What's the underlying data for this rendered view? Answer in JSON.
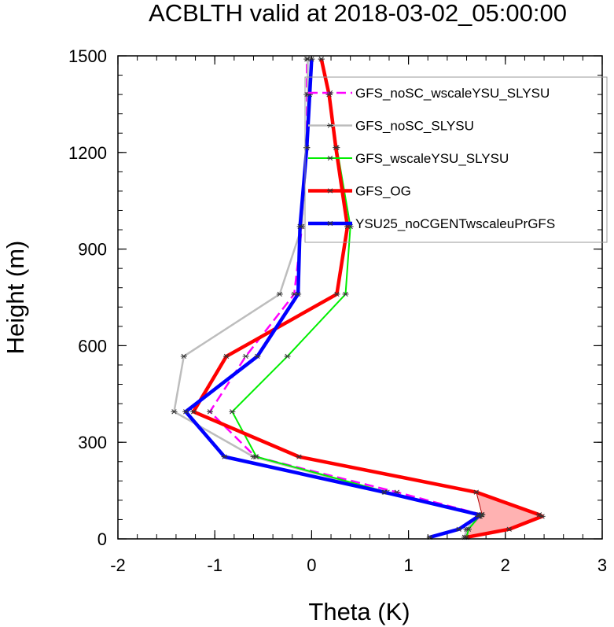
{
  "chart_data": {
    "type": "line",
    "title": "ACBLTH valid at 2018-03-02_05:00:00",
    "xlabel": "Theta (K)",
    "ylabel": "Height (m)",
    "xlim": [
      -2,
      3
    ],
    "ylim": [
      0,
      1500
    ],
    "xticks": [
      -2,
      -1,
      0,
      1,
      2,
      3
    ],
    "xtick_labels": [
      "-2",
      "-1",
      "0",
      "1",
      "2",
      "3"
    ],
    "yticks": [
      0,
      300,
      600,
      900,
      1200,
      1500
    ],
    "ytick_labels": [
      "0",
      "300",
      "600",
      "900",
      "1200",
      "1500"
    ],
    "grid": false,
    "legend_position": "top-right",
    "series": [
      {
        "name": "GFS_noSC_wscaleYSU_SLYSU",
        "color": "#ff00ff",
        "dash": true,
        "width": 2.5,
        "x": [
          1.58,
          1.6,
          1.74,
          1.76,
          0.88,
          -0.58,
          -1.05,
          -0.68,
          -0.18,
          -0.1,
          -0.05,
          -0.05,
          -0.05
        ],
        "y": [
          5,
          30,
          70,
          75,
          145,
          255,
          395,
          567,
          760,
          970,
          1215,
          1380,
          1490
        ]
      },
      {
        "name": "GFS_noSC_SLYSU",
        "color": "#bdbdbd",
        "dash": false,
        "width": 2.5,
        "x": [
          1.58,
          1.6,
          1.72,
          1.75,
          0.76,
          -0.6,
          -1.42,
          -1.32,
          -0.33,
          -0.1,
          -0.05,
          -0.04,
          -0.04
        ],
        "y": [
          5,
          30,
          70,
          75,
          145,
          255,
          395,
          567,
          760,
          970,
          1215,
          1380,
          1490
        ]
      },
      {
        "name": "GFS_wscaleYSU_SLYSU",
        "color": "#00ee00",
        "dash": false,
        "width": 2,
        "x": [
          1.6,
          1.62,
          1.73,
          1.76,
          0.78,
          -0.57,
          -0.82,
          -0.25,
          0.35,
          0.4,
          0.26,
          0.18,
          0.1
        ],
        "y": [
          5,
          30,
          70,
          75,
          145,
          255,
          395,
          567,
          760,
          970,
          1215,
          1380,
          1490
        ]
      },
      {
        "name": "GFS_OG",
        "color": "#ff0000",
        "dash": false,
        "width": 4.5,
        "x": [
          1.6,
          2.04,
          2.38,
          2.35,
          1.7,
          -0.13,
          -1.22,
          -0.88,
          0.26,
          0.37,
          0.25,
          0.18,
          0.1
        ],
        "y": [
          5,
          30,
          70,
          75,
          145,
          255,
          395,
          567,
          760,
          970,
          1215,
          1380,
          1490
        ]
      },
      {
        "name": "YSU25_noCGENTwscaleuPrGFS",
        "color": "#0000ff",
        "dash": false,
        "width": 4.5,
        "x": [
          1.22,
          1.52,
          1.72,
          1.73,
          0.75,
          -0.9,
          -1.3,
          -0.56,
          -0.14,
          -0.12,
          -0.05,
          -0.02,
          0.0
        ],
        "y": [
          5,
          30,
          70,
          75,
          145,
          255,
          395,
          567,
          760,
          970,
          1215,
          1380,
          1490
        ]
      }
    ],
    "shading": {
      "color": "#ff0000",
      "x_low": [
        1.6,
        1.62,
        1.74,
        1.76,
        1.7
      ],
      "x_high": [
        1.6,
        2.04,
        2.38,
        2.35,
        1.7
      ],
      "y": [
        5,
        30,
        70,
        75,
        145
      ]
    }
  }
}
